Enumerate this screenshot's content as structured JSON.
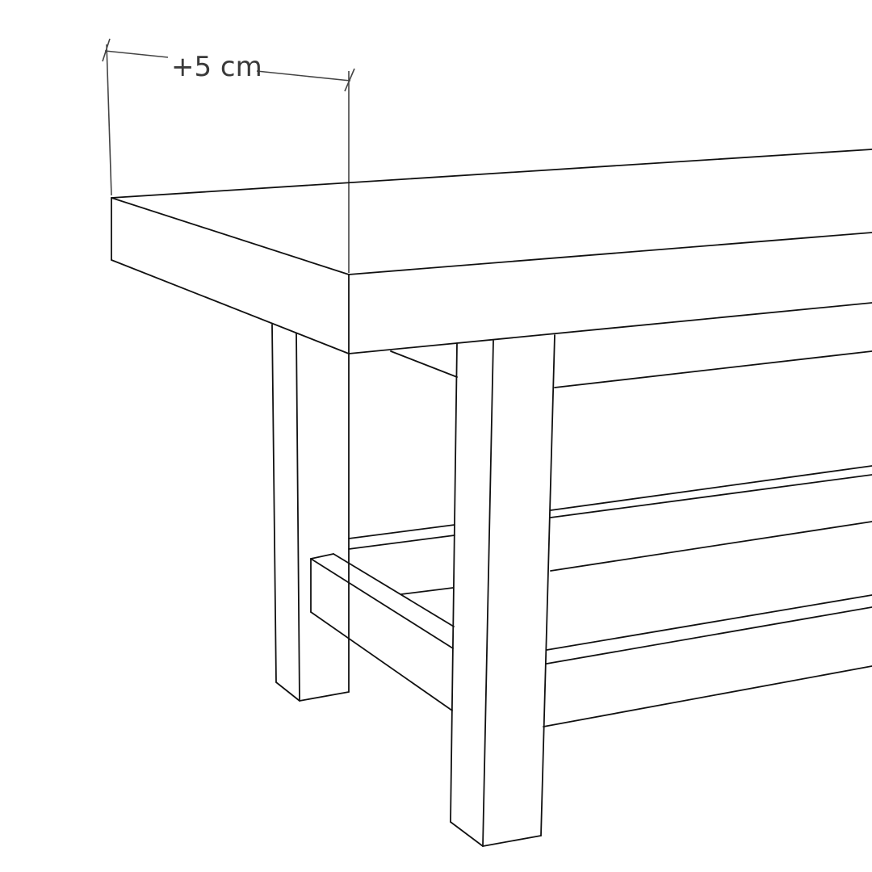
{
  "dimension": {
    "label": "+5 cm"
  },
  "drawing": {
    "subject": "bench-table-line-drawing",
    "line_color": "#111111",
    "dimension_color": "#444444"
  }
}
